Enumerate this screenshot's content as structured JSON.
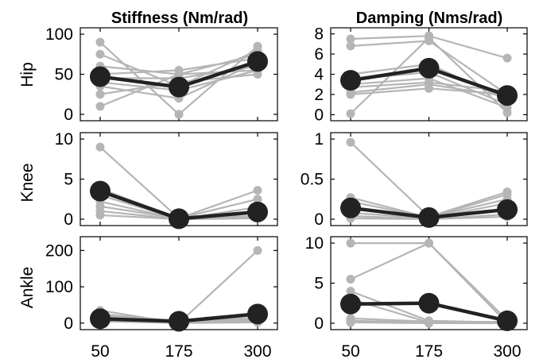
{
  "chart_data": {
    "type": "line",
    "x": [
      50,
      175,
      300
    ],
    "x_tick_labels": [
      "50",
      "175",
      "300"
    ],
    "columns": [
      {
        "title": "Stiffness (Nm/rad)"
      },
      {
        "title": "Damping (Nms/rad)"
      }
    ],
    "rows": [
      {
        "label": "Hip"
      },
      {
        "label": "Knee"
      },
      {
        "label": "Ankle"
      }
    ],
    "colors": {
      "individual": "#b5b5b5",
      "mean": "#222222"
    },
    "panels": [
      {
        "row": "Hip",
        "column": "Stiffness (Nm/rad)",
        "ylim": [
          -8,
          108
        ],
        "yticks": [
          0,
          50,
          100
        ],
        "individual": [
          [
            90,
            0,
            85
          ],
          [
            75,
            35,
            80
          ],
          [
            60,
            50,
            75
          ],
          [
            50,
            55,
            70
          ],
          [
            45,
            45,
            60
          ],
          [
            40,
            30,
            55
          ],
          [
            35,
            20,
            65
          ],
          [
            25,
            40,
            50
          ],
          [
            10,
            50,
            55
          ]
        ],
        "mean": [
          47,
          34,
          66
        ]
      },
      {
        "row": "Hip",
        "column": "Damping (Nms/rad)",
        "ylim": [
          -0.6,
          8.6
        ],
        "yticks": [
          0,
          2,
          4,
          6,
          8
        ],
        "individual": [
          [
            7.5,
            7.8,
            5.6
          ],
          [
            6.8,
            7.3,
            2.0
          ],
          [
            4.0,
            5.0,
            1.5
          ],
          [
            3.5,
            4.2,
            1.0
          ],
          [
            3.0,
            3.6,
            0.7
          ],
          [
            2.7,
            3.2,
            2.3
          ],
          [
            2.2,
            3.0,
            1.8
          ],
          [
            2.0,
            2.6,
            2.0
          ],
          [
            0.1,
            7.6,
            0.2
          ]
        ],
        "mean": [
          3.4,
          4.6,
          1.9
        ]
      },
      {
        "row": "Knee",
        "column": "Stiffness (Nm/rad)",
        "ylim": [
          -0.8,
          10.8
        ],
        "yticks": [
          0,
          5,
          10
        ],
        "individual": [
          [
            9.0,
            0.1,
            3.6
          ],
          [
            3.8,
            0.1,
            2.5
          ],
          [
            3.0,
            0.0,
            1.5
          ],
          [
            2.2,
            0.0,
            0.8
          ],
          [
            1.6,
            0.1,
            0.4
          ],
          [
            1.0,
            0.0,
            0.2
          ],
          [
            0.5,
            0.0,
            0.1
          ]
        ],
        "mean": [
          3.5,
          0.05,
          0.9
        ]
      },
      {
        "row": "Knee",
        "column": "Damping (Nms/rad)",
        "ylim": [
          -0.08,
          1.08
        ],
        "yticks": [
          0,
          0.5,
          1
        ],
        "individual": [
          [
            0.96,
            0.03,
            0.34
          ],
          [
            0.27,
            0.02,
            0.31
          ],
          [
            0.22,
            0.02,
            0.25
          ],
          [
            0.15,
            0.01,
            0.2
          ],
          [
            0.08,
            0.01,
            0.12
          ],
          [
            0.04,
            0.0,
            0.06
          ],
          [
            0.01,
            0.0,
            0.03
          ]
        ],
        "mean": [
          0.14,
          0.02,
          0.12
        ]
      },
      {
        "row": "Ankle",
        "column": "Stiffness (Nm/rad)",
        "ylim": [
          -18,
          238
        ],
        "yticks": [
          0,
          100,
          200
        ],
        "individual": [
          [
            35,
            0,
            200
          ],
          [
            25,
            5,
            15
          ],
          [
            20,
            3,
            5
          ],
          [
            15,
            2,
            10
          ],
          [
            10,
            1,
            3
          ],
          [
            5,
            0,
            2
          ]
        ],
        "mean": [
          12,
          5,
          25
        ]
      },
      {
        "row": "Ankle",
        "column": "Damping (Nms/rad)",
        "ylim": [
          -0.8,
          10.8
        ],
        "yticks": [
          0,
          5,
          10
        ],
        "individual": [
          [
            10.0,
            10.0,
            0.4
          ],
          [
            5.5,
            10.0,
            0.0
          ],
          [
            4.0,
            0.3,
            0.1
          ],
          [
            3.0,
            0.1,
            0.2
          ],
          [
            0.6,
            0.2,
            0.0
          ],
          [
            0.3,
            0.1,
            0.1
          ],
          [
            0.1,
            0.0,
            0.0
          ]
        ],
        "mean": [
          2.4,
          2.5,
          0.3
        ]
      }
    ]
  }
}
